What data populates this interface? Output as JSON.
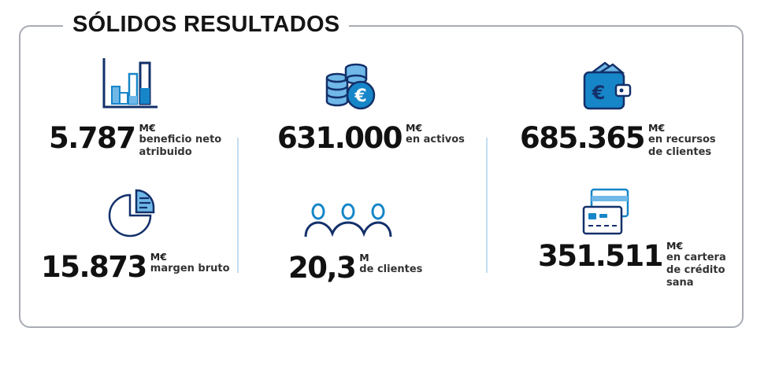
{
  "title": "SÓLIDOS RESULTADOS",
  "colors": {
    "navy": "#13306a",
    "blue": "#1686c8",
    "lightblue": "#6fb8e8",
    "border": "#a9acb6",
    "divider": "#c3def1"
  },
  "stats": [
    {
      "icon": "bar-chart-icon",
      "value": "5.787",
      "unit": "M€",
      "label": "beneficio neto\natribuido"
    },
    {
      "icon": "coins-euro-icon",
      "value": "631.000",
      "unit": "M€",
      "label": "en activos"
    },
    {
      "icon": "wallet-euro-icon",
      "value": "685.365",
      "unit": "M€",
      "label": "en recursos\nde clientes"
    },
    {
      "icon": "pie-chart-document-icon",
      "value": "15.873",
      "unit": "M€",
      "label": "margen bruto"
    },
    {
      "icon": "customers-group-icon",
      "value": "20,3",
      "unit": "M",
      "label": "de clientes"
    },
    {
      "icon": "credit-cards-icon",
      "value": "351.511",
      "unit": "M€",
      "label": "en cartera\nde crédito\nsana"
    }
  ]
}
